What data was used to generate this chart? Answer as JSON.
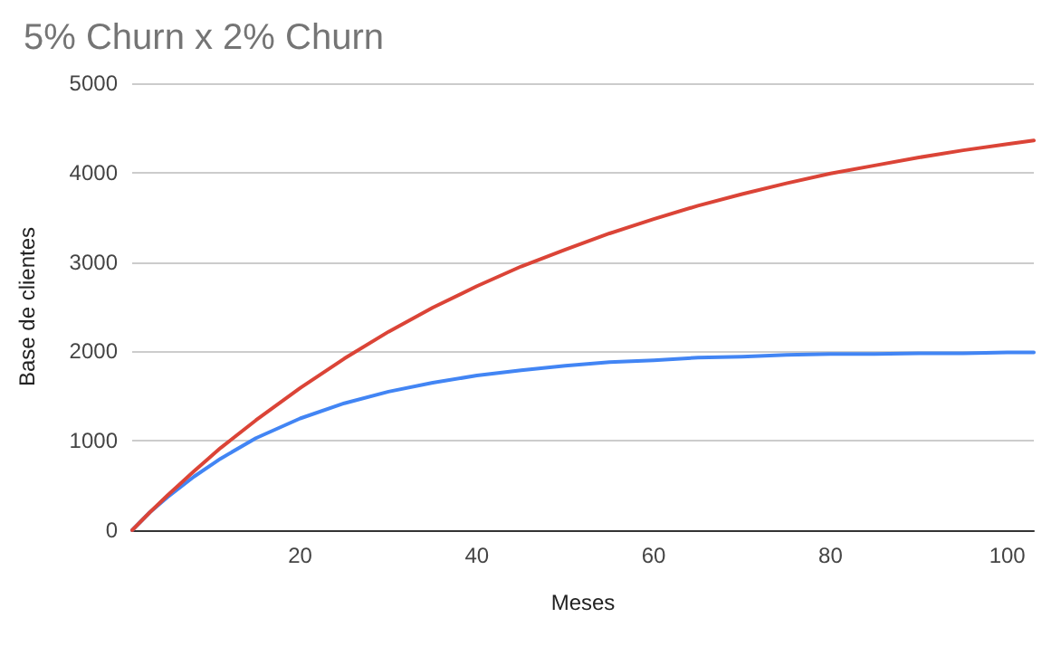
{
  "chart_data": {
    "type": "line",
    "title": "5% Churn x 2% Churn",
    "xlabel": "Meses",
    "ylabel": "Base de clientes",
    "x": [
      1,
      3,
      5,
      8,
      11,
      15,
      20,
      25,
      30,
      35,
      40,
      45,
      50,
      55,
      60,
      65,
      70,
      75,
      80,
      85,
      90,
      95,
      100,
      103
    ],
    "series": [
      {
        "color": "#4285f4",
        "values": [
          0,
          200,
          370,
          600,
          800,
          1030,
          1250,
          1420,
          1550,
          1650,
          1730,
          1790,
          1840,
          1880,
          1900,
          1930,
          1940,
          1960,
          1970,
          1970,
          1980,
          1980,
          1990,
          1990
        ]
      },
      {
        "color": "#db4437",
        "values": [
          0,
          200,
          390,
          660,
          920,
          1230,
          1590,
          1920,
          2220,
          2490,
          2730,
          2950,
          3140,
          3320,
          3480,
          3630,
          3760,
          3880,
          3990,
          4080,
          4170,
          4250,
          4320,
          4360
        ]
      }
    ],
    "xlim": [
      1,
      103
    ],
    "xticks": [
      20,
      40,
      60,
      80,
      100
    ],
    "ylim": [
      0,
      5000
    ],
    "yticks": [
      0,
      1000,
      2000,
      3000,
      4000,
      5000
    ],
    "grid": "y",
    "marker": "none",
    "line_style": "solid"
  }
}
